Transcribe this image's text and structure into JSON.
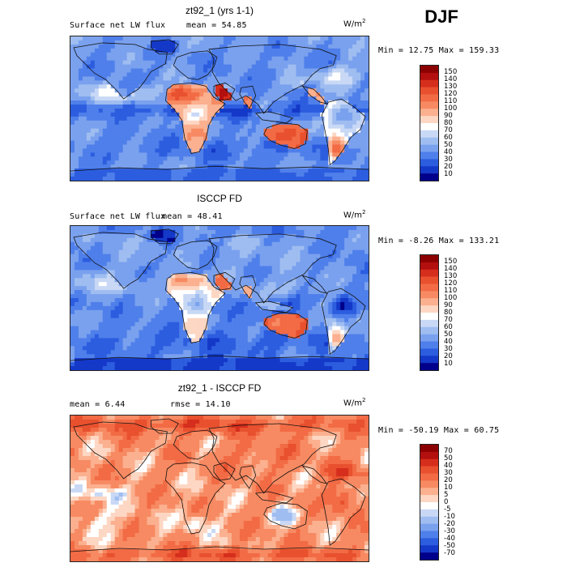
{
  "season": "DJF",
  "chart_data": [
    {
      "type": "heatmap",
      "title": "zt92_1 (yrs 1-1)",
      "variable_label": "Surface net LW flux",
      "stat1_label": "mean =",
      "stat1_value": "54.85",
      "units": "W/m",
      "units_exp": "2",
      "min_label": "Min =",
      "min_value": "12.75",
      "max_label": "Max =",
      "max_value": "159.33",
      "colorbar_levels": [
        "150",
        "140",
        "130",
        "120",
        "110",
        "100",
        "90",
        "80",
        "70",
        "60",
        "50",
        "40",
        "30",
        "20",
        "10"
      ],
      "colorbar_colors": [
        "#8b0000",
        "#b30f0f",
        "#d62e1c",
        "#e8502e",
        "#f26b45",
        "#f78a62",
        "#fbb08f",
        "#fdd7c3",
        "#ffffff",
        "#c8d8f5",
        "#9fbdf0",
        "#7aa1ee",
        "#4f7fea",
        "#2c5ddf",
        "#1438c8",
        "#00008b"
      ],
      "field": "sim"
    },
    {
      "type": "heatmap",
      "title": "ISCCP FD",
      "variable_label": "Surface net LW flux",
      "stat1_label": "mean =",
      "stat1_value": "48.41",
      "units": "W/m",
      "units_exp": "2",
      "min_label": "Min =",
      "min_value": "-8.26",
      "max_label": "Max =",
      "max_value": "133.21",
      "colorbar_levels": [
        "150",
        "140",
        "130",
        "120",
        "110",
        "100",
        "90",
        "80",
        "70",
        "60",
        "50",
        "40",
        "30",
        "20",
        "10"
      ],
      "colorbar_colors": [
        "#8b0000",
        "#b30f0f",
        "#d62e1c",
        "#e8502e",
        "#f26b45",
        "#f78a62",
        "#fbb08f",
        "#fdd7c3",
        "#ffffff",
        "#c8d8f5",
        "#9fbdf0",
        "#7aa1ee",
        "#4f7fea",
        "#2c5ddf",
        "#1438c8",
        "#00008b"
      ],
      "field": "obs"
    },
    {
      "type": "heatmap",
      "title": "zt92_1 - ISCCP FD",
      "variable_label": "",
      "stat1_label": "mean =",
      "stat1_value": "6.44",
      "stat2_label": "rmse =",
      "stat2_value": "14.10",
      "units": "W/m",
      "units_exp": "2",
      "min_label": "Min =",
      "min_value": "-50.19",
      "max_label": "Max =",
      "max_value": "60.75",
      "colorbar_levels": [
        "70",
        "50",
        "40",
        "30",
        "20",
        "10",
        "5",
        "0",
        "-5",
        "-10",
        "-20",
        "-30",
        "-40",
        "-50",
        "-70"
      ],
      "colorbar_colors": [
        "#8b0000",
        "#b30f0f",
        "#d62e1c",
        "#e8502e",
        "#f26b45",
        "#f78a62",
        "#fbb08f",
        "#fdd7c3",
        "#ffffff",
        "#c8d8f5",
        "#9fbdf0",
        "#7aa1ee",
        "#4f7fea",
        "#2c5ddf",
        "#1438c8",
        "#00008b"
      ],
      "field": "diff"
    }
  ]
}
